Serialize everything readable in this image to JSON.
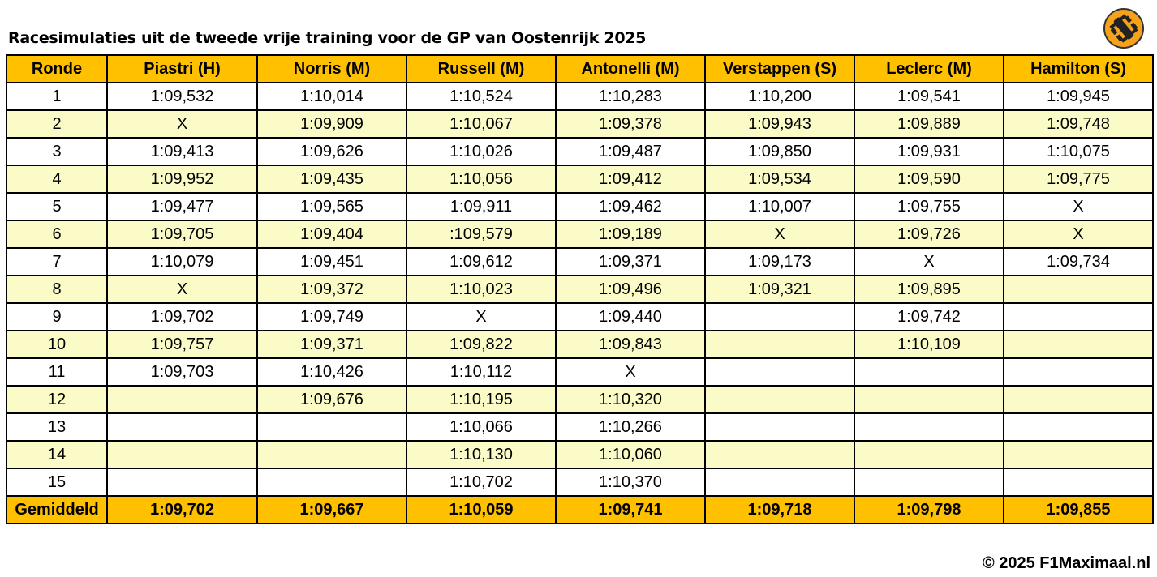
{
  "header": {
    "title": "Racesimulaties uit de tweede vrije training voor de GP van Oostenrijk 2025"
  },
  "table": {
    "columns": [
      "Ronde",
      "Piastri (H)",
      "Norris (M)",
      "Russell (M)",
      "Antonelli (M)",
      "Verstappen (S)",
      "Leclerc (M)",
      "Hamilton (S)"
    ],
    "rows": [
      [
        "1",
        "1:09,532",
        "1:10,014",
        "1:10,524",
        "1:10,283",
        "1:10,200",
        "1:09,541",
        "1:09,945"
      ],
      [
        "2",
        "X",
        "1:09,909",
        "1:10,067",
        "1:09,378",
        "1:09,943",
        "1:09,889",
        "1:09,748"
      ],
      [
        "3",
        "1:09,413",
        "1:09,626",
        "1:10,026",
        "1:09,487",
        "1:09,850",
        "1:09,931",
        "1:10,075"
      ],
      [
        "4",
        "1:09,952",
        "1:09,435",
        "1:10,056",
        "1:09,412",
        "1:09,534",
        "1:09,590",
        "1:09,775"
      ],
      [
        "5",
        "1:09,477",
        "1:09,565",
        "1:09,911",
        "1:09,462",
        "1:10,007",
        "1:09,755",
        "X"
      ],
      [
        "6",
        "1:09,705",
        "1:09,404",
        ":109,579",
        "1:09,189",
        "X",
        "1:09,726",
        "X"
      ],
      [
        "7",
        "1:10,079",
        "1:09,451",
        "1:09,612",
        "1:09,371",
        "1:09,173",
        "X",
        "1:09,734"
      ],
      [
        "8",
        "X",
        "1:09,372",
        "1:10,023",
        "1:09,496",
        "1:09,321",
        "1:09,895",
        null
      ],
      [
        "9",
        "1:09,702",
        "1:09,749",
        "X",
        "1:09,440",
        null,
        "1:09,742",
        null
      ],
      [
        "10",
        "1:09,757",
        "1:09,371",
        "1:09,822",
        "1:09,843",
        null,
        "1:10,109",
        null
      ],
      [
        "11",
        "1:09,703",
        "1:10,426",
        "1:10,112",
        "X",
        null,
        null,
        null
      ],
      [
        "12",
        null,
        "1:09,676",
        "1:10,195",
        "1:10,320",
        null,
        null,
        null
      ],
      [
        "13",
        null,
        null,
        "1:10,066",
        "1:10,266",
        null,
        null,
        null
      ],
      [
        "14",
        null,
        null,
        "1:10,130",
        "1:10,060",
        null,
        null,
        null
      ],
      [
        "15",
        null,
        null,
        "1:10,702",
        "1:10,370",
        null,
        null,
        null
      ]
    ],
    "footer": [
      "Gemiddeld",
      "1:09,702",
      "1:09,667",
      "1:10,059",
      "1:09,741",
      "1:09,718",
      "1:09,798",
      "1:09,855"
    ]
  },
  "copyright": "© 2025 F1Maximaal.nl"
}
